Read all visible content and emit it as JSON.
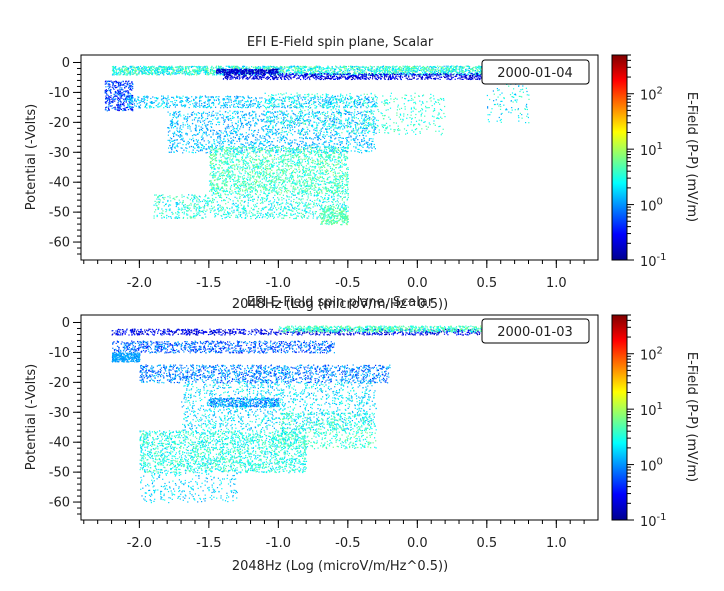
{
  "chart_data": [
    {
      "type": "scatter",
      "title": "EFI  E-Field spin plane, Scalar",
      "xlabel": "2048Hz (Log (microV/m/Hz^0.5))",
      "ylabel": "Potential (-Volts)",
      "xlim": [
        -2.42,
        1.3
      ],
      "ylim": [
        -66,
        2.5
      ],
      "x_ticks": [
        -2.0,
        -1.5,
        -1.0,
        -0.5,
        0.0,
        0.5,
        1.0
      ],
      "x_tick_labels": [
        "-2.0",
        "-1.5",
        "-1.0",
        "-0.5",
        "0.0",
        "0.5",
        "1.0"
      ],
      "y_ticks": [
        0,
        -10,
        -20,
        -30,
        -40,
        -50,
        -60
      ],
      "y_tick_labels": [
        "0",
        "-10",
        "-20",
        "-30",
        "-40",
        "-50",
        "-60"
      ],
      "annotation": "2000-01-04",
      "legend_position": "top-right",
      "colorbar": {
        "label": "E-Field (P-P) (mV/m)",
        "scale": "log",
        "range": [
          0.1,
          500
        ],
        "ticks": [
          0.1,
          1,
          10,
          100
        ],
        "tick_bases": [
          "10",
          "10",
          "10",
          "10"
        ],
        "tick_exponents": [
          "-1",
          "0",
          "1",
          "2"
        ],
        "colormap": [
          "#00008f",
          "#0000ff",
          "#007fff",
          "#00ffff",
          "#7fff7f",
          "#ffff00",
          "#ff7f00",
          "#ff0000",
          "#800000"
        ]
      },
      "clusters": [
        {
          "x": [
            -2.2,
            0.85
          ],
          "y": [
            -4,
            -1
          ],
          "n": 2600,
          "c": [
            1.2,
            8
          ]
        },
        {
          "x": [
            -1.4,
            0.6
          ],
          "y": [
            -5.5,
            -3.5
          ],
          "n": 900,
          "c": [
            0.12,
            0.4
          ]
        },
        {
          "x": [
            -1.45,
            -1.0
          ],
          "y": [
            -3.5,
            -2
          ],
          "n": 350,
          "c": [
            0.12,
            0.3
          ]
        },
        {
          "x": [
            -2.25,
            -2.05
          ],
          "y": [
            -16,
            -6
          ],
          "n": 380,
          "c": [
            0.2,
            1.2
          ]
        },
        {
          "x": [
            -2.1,
            -0.3
          ],
          "y": [
            -15,
            -11
          ],
          "n": 800,
          "c": [
            0.8,
            3
          ]
        },
        {
          "x": [
            -1.8,
            -0.3
          ],
          "y": [
            -30,
            -16
          ],
          "n": 1600,
          "c": [
            0.8,
            2.5
          ]
        },
        {
          "x": [
            -1.1,
            0.2
          ],
          "y": [
            -24,
            -10
          ],
          "n": 600,
          "c": [
            2,
            6
          ]
        },
        {
          "x": [
            -1.5,
            -0.5
          ],
          "y": [
            -44,
            -28
          ],
          "n": 2000,
          "c": [
            2,
            8
          ]
        },
        {
          "x": [
            -1.9,
            -0.5
          ],
          "y": [
            -52,
            -44
          ],
          "n": 900,
          "c": [
            1.5,
            6
          ]
        },
        {
          "x": [
            -0.7,
            -0.5
          ],
          "y": [
            -54,
            -48
          ],
          "n": 250,
          "c": [
            3,
            8
          ]
        },
        {
          "x": [
            0.5,
            0.8
          ],
          "y": [
            -20,
            -5
          ],
          "n": 120,
          "c": [
            1,
            5
          ]
        }
      ]
    },
    {
      "type": "scatter",
      "title": "EFI  E-Field spin plane, Scalar",
      "xlabel": "2048Hz (Log (microV/m/Hz^0.5))",
      "ylabel": "Potential (-Volts)",
      "xlim": [
        -2.42,
        1.3
      ],
      "ylim": [
        -66,
        2.5
      ],
      "x_ticks": [
        -2.0,
        -1.5,
        -1.0,
        -0.5,
        0.0,
        0.5,
        1.0
      ],
      "x_tick_labels": [
        "-2.0",
        "-1.5",
        "-1.0",
        "-0.5",
        "0.0",
        "0.5",
        "1.0"
      ],
      "y_ticks": [
        0,
        -10,
        -20,
        -30,
        -40,
        -50,
        -60
      ],
      "y_tick_labels": [
        "0",
        "-10",
        "-20",
        "-30",
        "-40",
        "-50",
        "-60"
      ],
      "annotation": "2000-01-03",
      "legend_position": "top-right",
      "colorbar": {
        "label": "E-Field (P-P) (mV/m)",
        "scale": "log",
        "range": [
          0.1,
          500
        ],
        "ticks": [
          0.1,
          1,
          10,
          100
        ],
        "tick_bases": [
          "10",
          "10",
          "10",
          "10"
        ],
        "tick_exponents": [
          "-1",
          "0",
          "1",
          "2"
        ],
        "colormap": [
          "#00008f",
          "#0000ff",
          "#007fff",
          "#00ffff",
          "#7fff7f",
          "#ffff00",
          "#ff7f00",
          "#ff0000",
          "#800000"
        ]
      },
      "clusters": [
        {
          "x": [
            -2.2,
            0.5
          ],
          "y": [
            -4,
            -2
          ],
          "n": 900,
          "c": [
            0.12,
            0.5
          ]
        },
        {
          "x": [
            -1.0,
            0.8
          ],
          "y": [
            -3,
            -1
          ],
          "n": 900,
          "c": [
            2,
            8
          ]
        },
        {
          "x": [
            -2.2,
            -0.6
          ],
          "y": [
            -10,
            -6
          ],
          "n": 900,
          "c": [
            0.3,
            1.5
          ]
        },
        {
          "x": [
            -2.2,
            -2.0
          ],
          "y": [
            -13,
            -10
          ],
          "n": 300,
          "c": [
            0.8,
            1.5
          ]
        },
        {
          "x": [
            -2.0,
            -0.2
          ],
          "y": [
            -20,
            -14
          ],
          "n": 1300,
          "c": [
            0.4,
            2
          ]
        },
        {
          "x": [
            -1.5,
            -1.0
          ],
          "y": [
            -28,
            -25
          ],
          "n": 400,
          "c": [
            0.5,
            1.5
          ]
        },
        {
          "x": [
            -1.7,
            -0.3
          ],
          "y": [
            -36,
            -20
          ],
          "n": 1300,
          "c": [
            1,
            4
          ]
        },
        {
          "x": [
            -2.0,
            -0.8
          ],
          "y": [
            -50,
            -36
          ],
          "n": 2000,
          "c": [
            1.5,
            6
          ]
        },
        {
          "x": [
            -1.0,
            -0.3
          ],
          "y": [
            -42,
            -30
          ],
          "n": 500,
          "c": [
            2,
            7
          ]
        },
        {
          "x": [
            -2.0,
            -1.3
          ],
          "y": [
            -60,
            -50
          ],
          "n": 250,
          "c": [
            1,
            3
          ]
        }
      ]
    }
  ]
}
